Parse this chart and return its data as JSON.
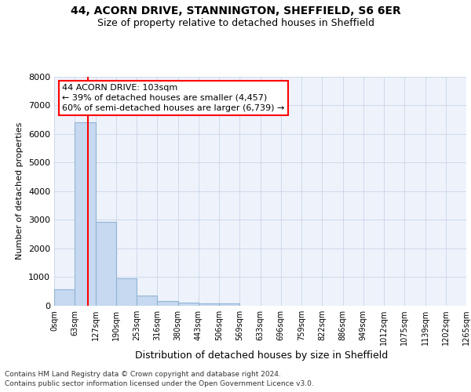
{
  "title_line1": "44, ACORN DRIVE, STANNINGTON, SHEFFIELD, S6 6ER",
  "title_line2": "Size of property relative to detached houses in Sheffield",
  "xlabel": "Distribution of detached houses by size in Sheffield",
  "ylabel": "Number of detached properties",
  "bin_edges": [
    0,
    63,
    127,
    190,
    253,
    316,
    380,
    443,
    506,
    569,
    633,
    696,
    759,
    822,
    886,
    949,
    1012,
    1075,
    1139,
    1202,
    1265
  ],
  "bin_labels": [
    "0sqm",
    "63sqm",
    "127sqm",
    "190sqm",
    "253sqm",
    "316sqm",
    "380sqm",
    "443sqm",
    "506sqm",
    "569sqm",
    "633sqm",
    "696sqm",
    "759sqm",
    "822sqm",
    "886sqm",
    "949sqm",
    "1012sqm",
    "1075sqm",
    "1139sqm",
    "1202sqm",
    "1265sqm"
  ],
  "bar_heights": [
    570,
    6400,
    2920,
    970,
    350,
    170,
    100,
    90,
    90,
    0,
    0,
    0,
    0,
    0,
    0,
    0,
    0,
    0,
    0,
    0
  ],
  "bar_color": "#c6d9f0",
  "bar_edgecolor": "#92b4d4",
  "vline_x": 103,
  "vline_color": "red",
  "annotation_line1": "44 ACORN DRIVE: 103sqm",
  "annotation_line2": "← 39% of detached houses are smaller (4,457)",
  "annotation_line3": "60% of semi-detached houses are larger (6,739) →",
  "annotation_box_color": "white",
  "annotation_box_edgecolor": "red",
  "ylim": [
    0,
    8000
  ],
  "yticks": [
    0,
    1000,
    2000,
    3000,
    4000,
    5000,
    6000,
    7000,
    8000
  ],
  "footer_line1": "Contains HM Land Registry data © Crown copyright and database right 2024.",
  "footer_line2": "Contains public sector information licensed under the Open Government Licence v3.0.",
  "background_color": "#eef3fb",
  "grid_color": "#c8d4e8",
  "title1_fontsize": 10,
  "title2_fontsize": 9,
  "ylabel_fontsize": 8,
  "xlabel_fontsize": 9,
  "ytick_fontsize": 8,
  "xtick_fontsize": 7,
  "annotation_fontsize": 8,
  "footer_fontsize": 6.5
}
